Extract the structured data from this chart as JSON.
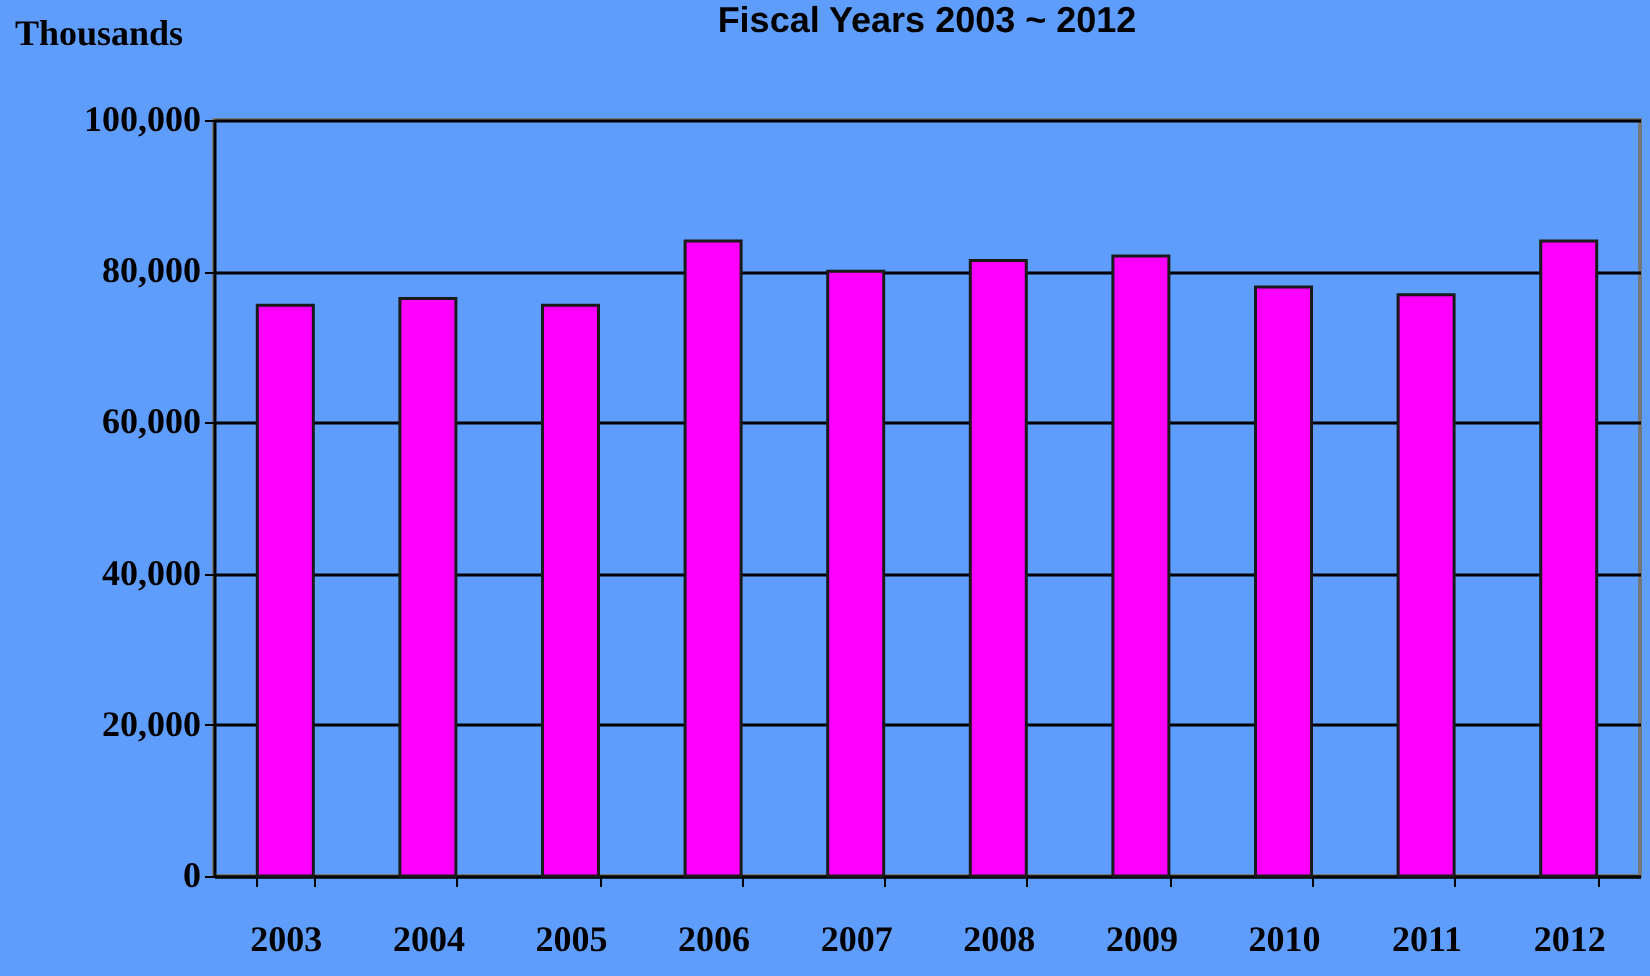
{
  "chart_data": {
    "type": "bar",
    "title": "Fiscal Years 2003 ~ 2012",
    "ylabel": "Thousands",
    "categories": [
      "2003",
      "2004",
      "2005",
      "2006",
      "2007",
      "2008",
      "2009",
      "2010",
      "2011",
      "2012"
    ],
    "values": [
      75500,
      76400,
      75500,
      84000,
      80000,
      81400,
      82000,
      77900,
      76900,
      84000
    ],
    "color": "#ff00ff",
    "ylim": [
      0,
      100000
    ],
    "yticks": [
      0,
      {
        "value": 20000,
        "label": "20,000"
      },
      {
        "value": 40000,
        "label": "40,000"
      },
      {
        "value": 60000,
        "label": "60,000"
      },
      {
        "value": 80000,
        "label": "80,000"
      },
      {
        "value": 100000,
        "label": "100,000"
      }
    ],
    "grid": "y"
  }
}
